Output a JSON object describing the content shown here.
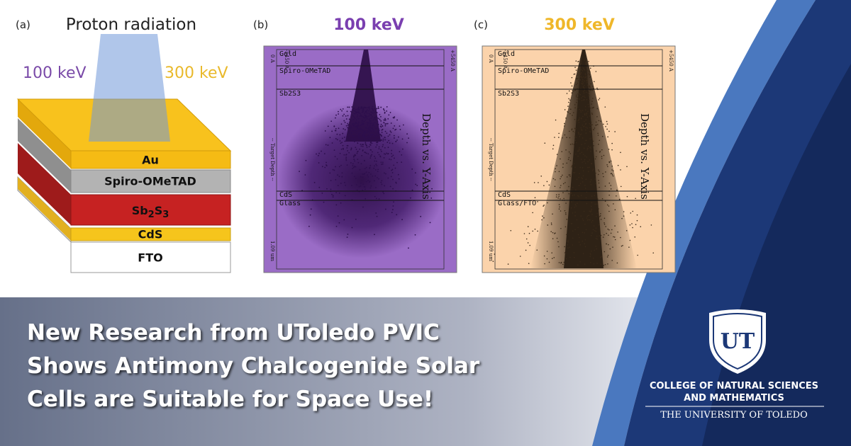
{
  "panel_a": {
    "label": "(a)",
    "beam": "Proton radiation",
    "energy_low": "100 keV",
    "energy_high": "300 keV",
    "layers": {
      "au": "Au",
      "spiro": "Spiro-OMeTAD",
      "sb2s3": [
        "Sb",
        "2",
        "S",
        "3"
      ],
      "cds": "CdS",
      "fto": "FTO"
    }
  },
  "panel_b": {
    "label": "(b)",
    "energy": "100 keV",
    "plot": {
      "layers": [
        "Gold",
        "Spiro-OMeTAD",
        "Sb2S3",
        "CdS",
        "Glass"
      ],
      "depth_start": "0 A",
      "left_edge": "-5450 A",
      "right_edge": "+5450 A",
      "axis_label": "-- Target Depth --",
      "depth_end": "1.09 um",
      "title": "Depth vs. Y-Axis"
    }
  },
  "panel_c": {
    "label": "(c)",
    "energy": "300 keV",
    "plot": {
      "layers": [
        "Gold",
        "Spiro-OMeTAD",
        "Sb2S3",
        "CdS",
        "Glass/FTO"
      ],
      "depth_start": "0 A",
      "left_edge": "-5450 A",
      "right_edge": "+5450 A",
      "axis_label": "-- Target Depth --",
      "depth_end": "1.09 um",
      "title": "Depth vs. Y-Axis"
    }
  },
  "headline": [
    "New Research from UToledo PVIC",
    "Shows Antimony Chalcogenide Solar",
    "Cells are Suitable for Space Use!"
  ],
  "logo": {
    "monogram": "UT",
    "college": [
      "COLLEGE OF NATURAL SCIENCES",
      "AND MATHEMATICS"
    ],
    "university": "THE UNIVERSITY OF TOLEDO"
  }
}
